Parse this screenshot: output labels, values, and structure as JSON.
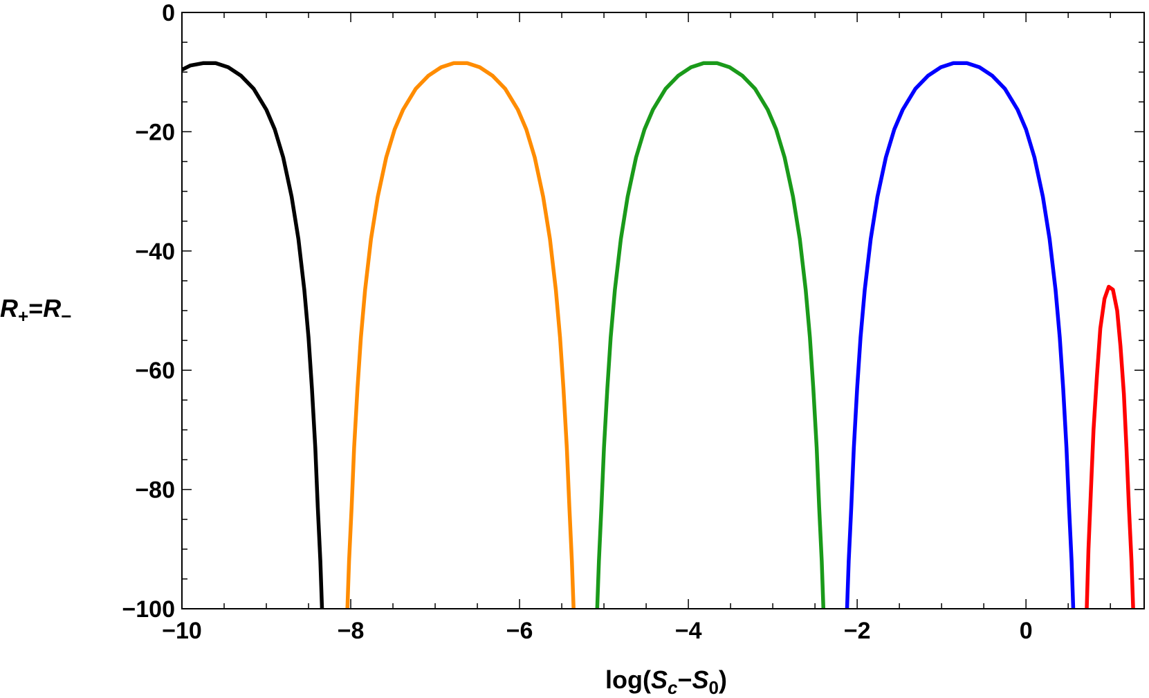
{
  "chart_data": {
    "type": "line",
    "title": "",
    "xlabel": {
      "prefix": "log(",
      "s1": "S",
      "s1_sub": "c",
      "mid": "−",
      "s2": "S",
      "s2_sub": "0",
      "suffix": ")"
    },
    "ylabel": {
      "r1": "R",
      "r1_sub": "+",
      "eq": "=",
      "r2": "R",
      "r2_sub": "−"
    },
    "xlim": [
      -10,
      1.4
    ],
    "ylim": [
      -100,
      0
    ],
    "x_ticks": [
      {
        "value": -10,
        "label": "−10"
      },
      {
        "value": -8,
        "label": "−8"
      },
      {
        "value": -6,
        "label": "−6"
      },
      {
        "value": -4,
        "label": "−4"
      },
      {
        "value": -2,
        "label": "−2"
      },
      {
        "value": 0,
        "label": "0"
      }
    ],
    "y_ticks": [
      {
        "value": 0,
        "label": "0"
      },
      {
        "value": -20,
        "label": "−20"
      },
      {
        "value": -40,
        "label": "−40"
      },
      {
        "value": -60,
        "label": "−60"
      },
      {
        "value": -80,
        "label": "−80"
      },
      {
        "value": -100,
        "label": "−100"
      }
    ],
    "grid": false,
    "series": [
      {
        "color": "#000000",
        "points": [
          [
            -10.0,
            -9.6
          ],
          [
            -9.9,
            -8.9
          ],
          [
            -9.75,
            -8.5
          ],
          [
            -9.6,
            -8.5
          ],
          [
            -9.45,
            -9.2
          ],
          [
            -9.3,
            -10.6
          ],
          [
            -9.15,
            -12.8
          ],
          [
            -9.0,
            -16.3
          ],
          [
            -8.9,
            -19.6
          ],
          [
            -8.8,
            -24.3
          ],
          [
            -8.7,
            -30.9
          ],
          [
            -8.62,
            -38.0
          ],
          [
            -8.55,
            -46.5
          ],
          [
            -8.5,
            -54.5
          ],
          [
            -8.46,
            -63.0
          ],
          [
            -8.42,
            -73.0
          ],
          [
            -8.39,
            -83.0
          ],
          [
            -8.36,
            -92.0
          ],
          [
            -8.34,
            -100.0
          ]
        ]
      },
      {
        "color": "#ff8c00",
        "points": [
          [
            -8.04,
            -100.0
          ],
          [
            -8.02,
            -92.0
          ],
          [
            -7.99,
            -83.0
          ],
          [
            -7.96,
            -73.0
          ],
          [
            -7.92,
            -63.0
          ],
          [
            -7.88,
            -54.5
          ],
          [
            -7.83,
            -46.5
          ],
          [
            -7.76,
            -38.0
          ],
          [
            -7.68,
            -30.9
          ],
          [
            -7.58,
            -24.3
          ],
          [
            -7.48,
            -19.6
          ],
          [
            -7.38,
            -16.3
          ],
          [
            -7.23,
            -12.8
          ],
          [
            -7.08,
            -10.6
          ],
          [
            -6.93,
            -9.2
          ],
          [
            -6.78,
            -8.5
          ],
          [
            -6.62,
            -8.5
          ],
          [
            -6.47,
            -9.2
          ],
          [
            -6.32,
            -10.6
          ],
          [
            -6.17,
            -12.8
          ],
          [
            -6.02,
            -16.3
          ],
          [
            -5.92,
            -19.6
          ],
          [
            -5.82,
            -24.3
          ],
          [
            -5.72,
            -30.9
          ],
          [
            -5.64,
            -38.0
          ],
          [
            -5.57,
            -46.5
          ],
          [
            -5.52,
            -54.5
          ],
          [
            -5.48,
            -63.0
          ],
          [
            -5.44,
            -73.0
          ],
          [
            -5.41,
            -83.0
          ],
          [
            -5.38,
            -92.0
          ],
          [
            -5.36,
            -100.0
          ]
        ]
      },
      {
        "color": "#1a9a1a",
        "points": [
          [
            -5.08,
            -100.0
          ],
          [
            -5.06,
            -92.0
          ],
          [
            -5.03,
            -83.0
          ],
          [
            -5.0,
            -73.0
          ],
          [
            -4.96,
            -63.0
          ],
          [
            -4.92,
            -54.5
          ],
          [
            -4.87,
            -46.5
          ],
          [
            -4.8,
            -38.0
          ],
          [
            -4.72,
            -30.9
          ],
          [
            -4.62,
            -24.3
          ],
          [
            -4.52,
            -19.6
          ],
          [
            -4.42,
            -16.3
          ],
          [
            -4.27,
            -12.8
          ],
          [
            -4.12,
            -10.6
          ],
          [
            -3.97,
            -9.2
          ],
          [
            -3.82,
            -8.5
          ],
          [
            -3.66,
            -8.5
          ],
          [
            -3.51,
            -9.2
          ],
          [
            -3.36,
            -10.6
          ],
          [
            -3.21,
            -12.8
          ],
          [
            -3.06,
            -16.3
          ],
          [
            -2.96,
            -19.6
          ],
          [
            -2.86,
            -24.3
          ],
          [
            -2.76,
            -30.9
          ],
          [
            -2.68,
            -38.0
          ],
          [
            -2.61,
            -46.5
          ],
          [
            -2.56,
            -54.5
          ],
          [
            -2.52,
            -63.0
          ],
          [
            -2.48,
            -73.0
          ],
          [
            -2.45,
            -83.0
          ],
          [
            -2.42,
            -92.0
          ],
          [
            -2.4,
            -100.0
          ]
        ]
      },
      {
        "color": "#0000ff",
        "points": [
          [
            -2.12,
            -100.0
          ],
          [
            -2.1,
            -92.0
          ],
          [
            -2.07,
            -83.0
          ],
          [
            -2.04,
            -73.0
          ],
          [
            -2.0,
            -63.0
          ],
          [
            -1.96,
            -54.5
          ],
          [
            -1.91,
            -46.5
          ],
          [
            -1.84,
            -38.0
          ],
          [
            -1.76,
            -30.9
          ],
          [
            -1.66,
            -24.3
          ],
          [
            -1.56,
            -19.6
          ],
          [
            -1.46,
            -16.3
          ],
          [
            -1.31,
            -12.8
          ],
          [
            -1.16,
            -10.6
          ],
          [
            -1.01,
            -9.2
          ],
          [
            -0.86,
            -8.5
          ],
          [
            -0.7,
            -8.5
          ],
          [
            -0.55,
            -9.2
          ],
          [
            -0.4,
            -10.6
          ],
          [
            -0.25,
            -12.8
          ],
          [
            -0.1,
            -16.3
          ],
          [
            0.0,
            -19.6
          ],
          [
            0.1,
            -24.3
          ],
          [
            0.2,
            -30.9
          ],
          [
            0.28,
            -38.0
          ],
          [
            0.35,
            -46.5
          ],
          [
            0.4,
            -54.5
          ],
          [
            0.44,
            -63.0
          ],
          [
            0.48,
            -73.0
          ],
          [
            0.51,
            -83.0
          ],
          [
            0.54,
            -92.0
          ],
          [
            0.56,
            -100.0
          ]
        ]
      },
      {
        "color": "#ff0000",
        "points": [
          [
            0.72,
            -100.0
          ],
          [
            0.74,
            -90.0
          ],
          [
            0.77,
            -80.0
          ],
          [
            0.8,
            -70.0
          ],
          [
            0.84,
            -61.0
          ],
          [
            0.88,
            -53.0
          ],
          [
            0.93,
            -48.0
          ],
          [
            0.98,
            -46.0
          ],
          [
            1.03,
            -46.5
          ],
          [
            1.08,
            -50.0
          ],
          [
            1.12,
            -56.0
          ],
          [
            1.16,
            -64.0
          ],
          [
            1.19,
            -73.0
          ],
          [
            1.22,
            -83.0
          ],
          [
            1.25,
            -92.0
          ],
          [
            1.27,
            -100.0
          ]
        ]
      }
    ]
  }
}
